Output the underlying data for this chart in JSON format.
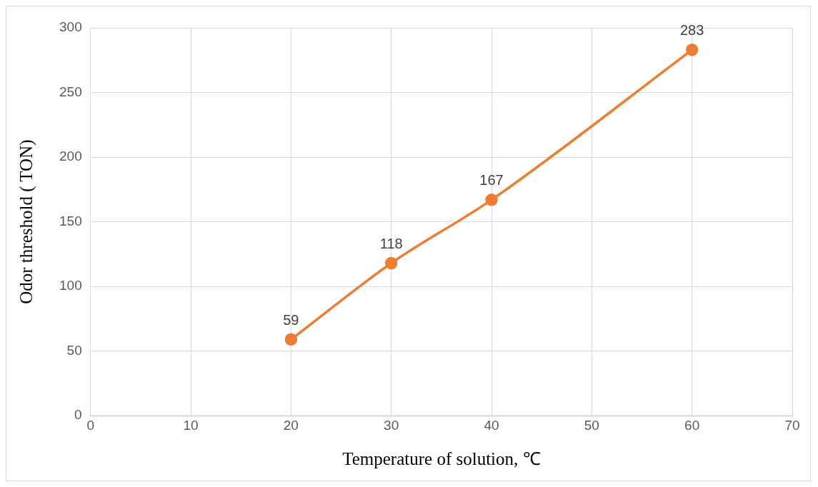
{
  "chart_data": {
    "type": "line",
    "xlabel": "Temperature of solution, ℃",
    "ylabel": "Odor threshold ( TON)",
    "x": [
      20,
      30,
      40,
      60
    ],
    "series": [
      {
        "color": "#ed7d31",
        "values": [
          59,
          118,
          167,
          283
        ]
      }
    ],
    "xlim": [
      0,
      70
    ],
    "xticks": [
      0,
      10,
      20,
      30,
      40,
      50,
      60,
      70
    ],
    "ylim": [
      0,
      300
    ],
    "yticks": [
      0,
      50,
      100,
      150,
      200,
      250,
      300
    ],
    "grid": true,
    "marker": "circle",
    "line_style": "solid",
    "data_labels": true,
    "legend": false
  }
}
